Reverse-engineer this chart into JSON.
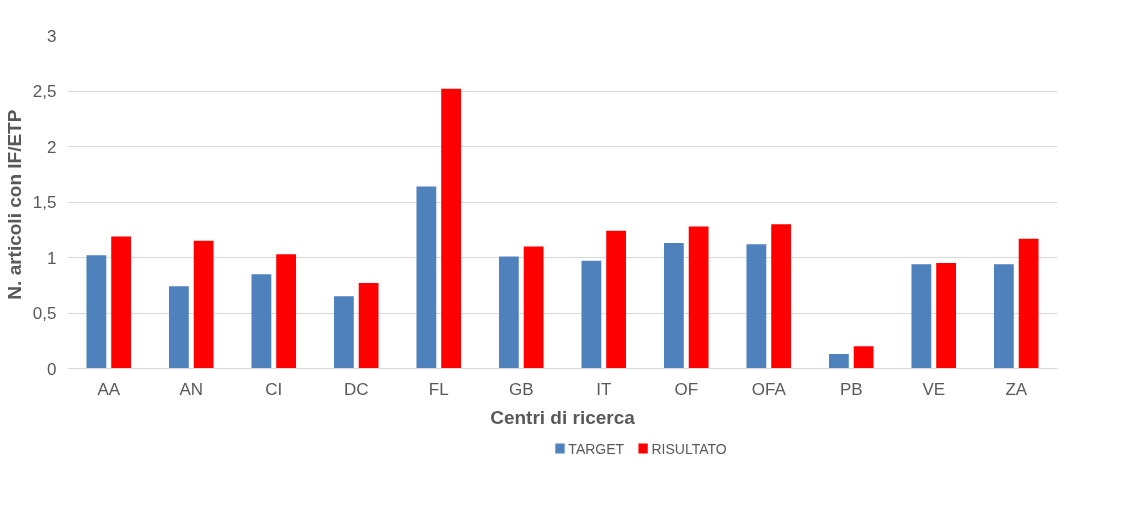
{
  "chart_data": {
    "type": "bar",
    "xlabel": "Centri di ricerca",
    "ylabel": "N. articoli  con IF/ETP",
    "categories": [
      "AA",
      "AN",
      "CI",
      "DC",
      "FL",
      "GB",
      "IT",
      "OF",
      "OFA",
      "PB",
      "VE",
      "ZA"
    ],
    "series": [
      {
        "name": "TARGET",
        "color": "#4f81bd",
        "values": [
          1.02,
          0.74,
          0.85,
          0.65,
          1.64,
          1.01,
          0.97,
          1.13,
          1.12,
          0.13,
          0.94,
          0.94
        ]
      },
      {
        "name": "RISULTATO",
        "color": "#ff0000",
        "values": [
          1.19,
          1.15,
          1.03,
          0.77,
          2.52,
          1.1,
          1.24,
          1.28,
          1.3,
          0.2,
          0.95,
          1.17
        ]
      }
    ],
    "ylim": [
      0,
      3
    ],
    "yticks": [
      0,
      {
        "value": 0.5,
        "label": "0,5"
      },
      1,
      {
        "value": 1.5,
        "label": "1,5"
      },
      2,
      {
        "value": 2.5,
        "label": "2,5"
      },
      3
    ],
    "grid": "y",
    "legend": "bottom"
  }
}
